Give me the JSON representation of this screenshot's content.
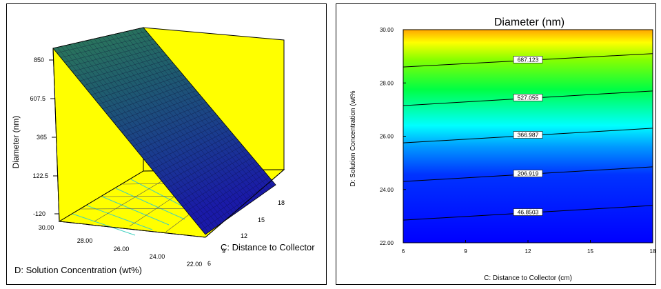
{
  "chart_data": [
    {
      "type": "surface3d",
      "zlabel": "Diameter (nm)",
      "ylabel": "D: Solution Concentration (wt%)",
      "xlabel": "C: Distance to Collector",
      "z_ticks": [
        "850",
        "607.5",
        "365",
        "122.5",
        "-120"
      ],
      "y_ticks": [
        "30.00",
        "28.00",
        "26.00",
        "24.00",
        "22.00"
      ],
      "x_ticks": [
        "18",
        "15",
        "12",
        "9",
        "6"
      ],
      "zlim": [
        -120,
        850
      ],
      "ylim": [
        22,
        30
      ],
      "xlim": [
        6,
        18
      ],
      "surface_corners": [
        {
          "x": 6,
          "y": 30,
          "z": 850
        },
        {
          "x": 18,
          "y": 30,
          "z": 850
        },
        {
          "x": 6,
          "y": 22,
          "z": -110
        },
        {
          "x": 18,
          "y": 22,
          "z": 0
        }
      ],
      "colors": {
        "wall": "#ffff00",
        "surface_high": "#2e8b57",
        "surface_low": "#1a1aa0",
        "floor_contour": "#40e0d0"
      }
    },
    {
      "type": "contour",
      "title": "Diameter (nm)",
      "xlabel": "C: Distance to Collector (cm)",
      "ylabel": "D: Solution Concentration (wt%",
      "x_ticks": [
        "6",
        "9",
        "12",
        "15",
        "18"
      ],
      "y_ticks": [
        "22.00",
        "24.00",
        "26.00",
        "28.00",
        "30.00"
      ],
      "xlim": [
        6,
        18
      ],
      "ylim": [
        22,
        30
      ],
      "contours": [
        {
          "label": "46.8503",
          "value": 46.8503,
          "y_at_x6": 22.85,
          "y_at_x18": 23.4
        },
        {
          "label": "206.919",
          "value": 206.919,
          "y_at_x6": 24.3,
          "y_at_x18": 24.85
        },
        {
          "label": "366.987",
          "value": 366.987,
          "y_at_x6": 25.75,
          "y_at_x18": 26.3
        },
        {
          "label": "527.055",
          "value": 527.055,
          "y_at_x6": 27.15,
          "y_at_x18": 27.7
        },
        {
          "label": "687.123",
          "value": 687.123,
          "y_at_x6": 28.6,
          "y_at_x18": 29.1
        }
      ],
      "colors": {
        "low": "#0000ff",
        "mid": "#00ffff",
        "high": "#00ff00",
        "top": "#ffff00",
        "max": "#ffa500"
      }
    }
  ]
}
